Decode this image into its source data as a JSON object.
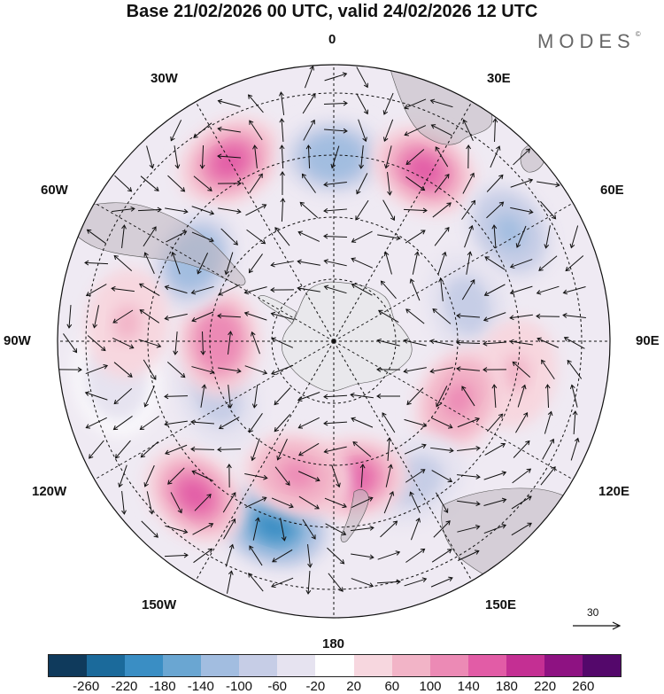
{
  "title": "Base 21/02/2026 00 UTC, valid 24/02/2026 12 UTC",
  "brand": "MODES",
  "brand_mark": "©",
  "longitude_labels": {
    "top": "0",
    "top_right": "30E",
    "right_upper": "60E",
    "right": "90E",
    "right_lower": "120E",
    "bottom_right": "150E",
    "bottom": "180",
    "bottom_left": "150W",
    "left_lower": "120W",
    "left": "90W",
    "left_upper": "60W",
    "top_left": "30W"
  },
  "reference_vector": "30",
  "colorbar": {
    "ticks": [
      "-260",
      "-220",
      "-180",
      "-140",
      "-100",
      "-60",
      "-20",
      "20",
      "60",
      "100",
      "140",
      "180",
      "220",
      "260"
    ],
    "colors": [
      "#0f3a5c",
      "#1b6a9b",
      "#3a8ec4",
      "#6aa6d2",
      "#a2bde0",
      "#c6cde6",
      "#e6e3f0",
      "#ffffff",
      "#f7d7df",
      "#f2b4c7",
      "#ec8ab5",
      "#e25ca6",
      "#c42f93",
      "#8e1282",
      "#54086b"
    ]
  },
  "anomaly_centers": [
    {
      "lat": -45,
      "lon": -30,
      "value": 150
    },
    {
      "lat": -50,
      "lon": 0,
      "value": -140
    },
    {
      "lat": -48,
      "lon": 28,
      "value": 160
    },
    {
      "lat": -45,
      "lon": 58,
      "value": -110
    },
    {
      "lat": -60,
      "lon": 75,
      "value": -90
    },
    {
      "lat": -50,
      "lon": 100,
      "value": 60
    },
    {
      "lat": -60,
      "lon": 115,
      "value": 110
    },
    {
      "lat": -55,
      "lon": 150,
      "value": -90
    },
    {
      "lat": -60,
      "lon": 172,
      "value": 160
    },
    {
      "lat": -48,
      "lon": -162,
      "value": -200
    },
    {
      "lat": -45,
      "lon": -138,
      "value": 150
    },
    {
      "lat": -60,
      "lon": -165,
      "value": 100
    },
    {
      "lat": -62,
      "lon": -115,
      "value": -90
    },
    {
      "lat": -65,
      "lon": -90,
      "value": 120
    },
    {
      "lat": -55,
      "lon": -60,
      "value": -140
    },
    {
      "lat": -42,
      "lon": -100,
      "value": -50
    },
    {
      "lat": -45,
      "lon": -85,
      "value": 60
    }
  ]
}
